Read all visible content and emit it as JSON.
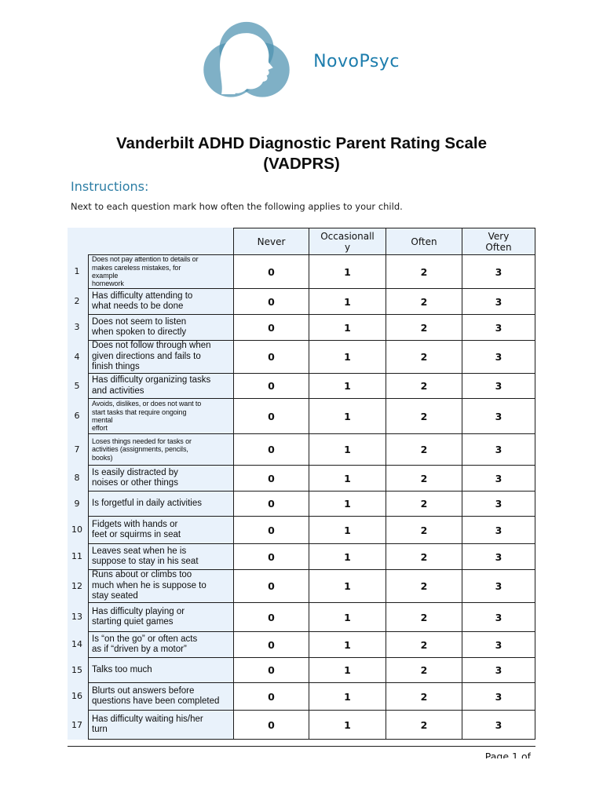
{
  "colors": {
    "light_blue_bg": "#e9f2fb",
    "border": "#1c1c1c",
    "brand_blue": "#1d7dad",
    "instructions_teal": "#2c7da4",
    "logo_blue": "#4e92b0"
  },
  "logo": {
    "brand": "NovoPsyc",
    "mark": "head-profile-logo"
  },
  "title": {
    "text": "Vanderbilt ADHD Diagnostic Parent Rating Scale\n(VADPRS)"
  },
  "instructions": {
    "heading": "Instructions:",
    "text": "Next to each question mark how often the following applies to your child."
  },
  "table": {
    "column_headers": [
      "Never",
      "Occasionall\ny",
      "Often",
      "Very\nOften"
    ],
    "rating_values": [
      "0",
      "1",
      "2",
      "3"
    ],
    "rows": [
      {
        "num": "1",
        "text": "Does not pay attention to details or\nmakes careless mistakes, for\nexample\nhomework",
        "small": true,
        "height": 43
      },
      {
        "num": "2",
        "text": "Has difficulty attending to\nwhat needs to be done",
        "small": false,
        "height": 33
      },
      {
        "num": "3",
        "text": "Does not seem to listen\nwhen spoken to directly",
        "small": false,
        "height": 33
      },
      {
        "num": "4",
        "text": "Does not follow through when\ngiven directions and fails to\nfinish things",
        "small": false,
        "height": 42
      },
      {
        "num": "5",
        "text": "Has difficulty organizing tasks\nand activities",
        "small": false,
        "height": 32
      },
      {
        "num": "6",
        "text": "Avoids, dislikes, or does not want to\nstart tasks that require ongoing\nmental\neffort",
        "small": true,
        "height": 45
      },
      {
        "num": "7",
        "text": "Loses things needed for tasks or\nactivities (assignments, pencils,\nbooks)",
        "small": true,
        "height": 40
      },
      {
        "num": "8",
        "text": "Is easily distracted by\nnoises or other things",
        "small": false,
        "height": 33
      },
      {
        "num": "9",
        "text": "Is forgetful in daily activities",
        "small": false,
        "height": 32
      },
      {
        "num": "10",
        "text": "Fidgets with hands or\nfeet or squirms in seat",
        "small": false,
        "height": 35
      },
      {
        "num": "11",
        "text": "Leaves seat when he is\nsuppose to stay in his seat",
        "small": false,
        "height": 33
      },
      {
        "num": "12",
        "text": "Runs about or climbs too\nmuch when he is suppose to\nstay seated",
        "small": false,
        "height": 42
      },
      {
        "num": "13",
        "text": "Has difficulty playing or\nstarting quiet games",
        "small": false,
        "height": 37
      },
      {
        "num": "14",
        "text": "Is “on the go” or often acts\nas if “driven by a motor”",
        "small": false,
        "height": 33
      },
      {
        "num": "15",
        "text": "Talks too much",
        "small": false,
        "height": 32
      },
      {
        "num": "16",
        "text": "Blurts out answers before\nquestions have been completed",
        "small": false,
        "height": 35
      },
      {
        "num": "17",
        "text": "Has difficulty waiting his/her\nturn",
        "small": false,
        "height": 38
      }
    ]
  },
  "footer": {
    "page_label": "Page 1 of"
  }
}
